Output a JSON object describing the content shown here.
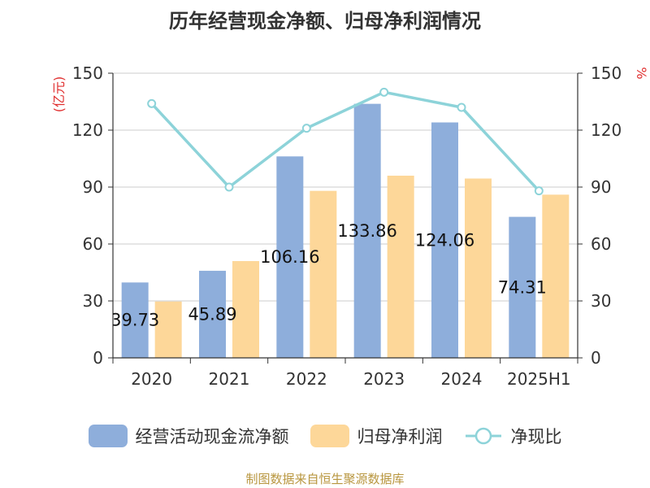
{
  "chart_data": {
    "type": "bar",
    "title": "历年经营现金净额、归母净利润情况",
    "categories": [
      "2020",
      "2021",
      "2022",
      "2023",
      "2024",
      "2025H1"
    ],
    "series": [
      {
        "name": "经营活动现金流净额",
        "type": "bar",
        "axis": "left",
        "color": "#8eaedb",
        "values": [
          39.73,
          45.89,
          106.16,
          133.86,
          124.06,
          74.31
        ],
        "labels": [
          "39.73",
          "45.89",
          "106.16",
          "133.86",
          "124.06",
          "74.31"
        ]
      },
      {
        "name": "归母净利润",
        "type": "bar",
        "axis": "left",
        "color": "#fdd799",
        "values": [
          29.7,
          51.0,
          88.0,
          96.0,
          94.5,
          86.0
        ]
      },
      {
        "name": "净现比",
        "type": "line",
        "axis": "right",
        "color": "#8dd3d9",
        "values": [
          134,
          90,
          121,
          140,
          132,
          88
        ]
      }
    ],
    "left_axis": {
      "label": "(亿元)",
      "min": 0,
      "max": 150,
      "ticks": [
        "0",
        "30",
        "60",
        "90",
        "120",
        "150"
      ]
    },
    "right_axis": {
      "label": "%",
      "min": 0,
      "max": 150,
      "ticks": [
        "0",
        "30",
        "60",
        "90",
        "120",
        "150"
      ]
    },
    "grid": true,
    "legend_position": "bottom"
  },
  "footer": "制图数据来自恒生聚源数据库"
}
